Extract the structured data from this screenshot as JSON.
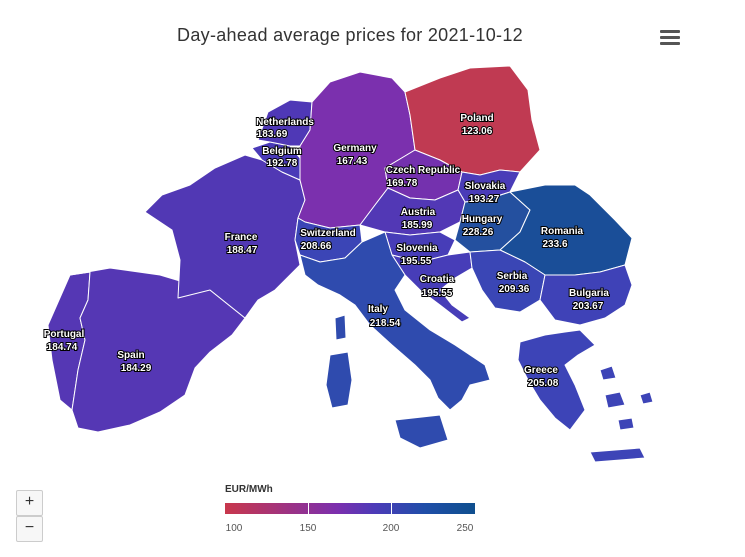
{
  "title": "Day-ahead average prices for 2021-10-12",
  "menu_icon": "hamburger-menu-icon",
  "zoom": {
    "in_label": "+",
    "out_label": "−"
  },
  "legend": {
    "title": "EUR/MWh",
    "ticks": [
      "100",
      "150",
      "200",
      "250"
    ],
    "colors": [
      "#c8374c",
      "#7b2fae",
      "#4c3bb8",
      "#1f4ea8",
      "#0f4f8e"
    ]
  },
  "countries": [
    {
      "key": "netherlands",
      "name": "Netherlands",
      "price": "183.69",
      "color": "#4f38b6"
    },
    {
      "key": "belgium",
      "name": "Belgium",
      "price": "192.78",
      "color": "#4a3bb8"
    },
    {
      "key": "germany",
      "name": "Germany",
      "price": "167.43",
      "color": "#7b30ae"
    },
    {
      "key": "poland",
      "name": "Poland",
      "price": "123.06",
      "color": "#c03a52"
    },
    {
      "key": "czech_republic",
      "name": "Czech Republic",
      "price": "169.78",
      "color": "#7431ae"
    },
    {
      "key": "slovakia",
      "name": "Slovakia",
      "price": "193.27",
      "color": "#4a3cb8"
    },
    {
      "key": "france",
      "name": "France",
      "price": "188.47",
      "color": "#5138b4"
    },
    {
      "key": "switzerland",
      "name": "Switzerland",
      "price": "208.66",
      "color": "#3b45b6"
    },
    {
      "key": "austria",
      "name": "Austria",
      "price": "185.99",
      "color": "#5238b5"
    },
    {
      "key": "hungary",
      "name": "Hungary",
      "price": "228.26",
      "color": "#24509f"
    },
    {
      "key": "romania",
      "name": "Romania",
      "price": "233.6",
      "color": "#1a4e98"
    },
    {
      "key": "slovenia",
      "name": "Slovenia",
      "price": "195.55",
      "color": "#473db8"
    },
    {
      "key": "croatia",
      "name": "Croatia",
      "price": "195.55",
      "color": "#473db8"
    },
    {
      "key": "serbia",
      "name": "Serbia",
      "price": "209.36",
      "color": "#3a46b5"
    },
    {
      "key": "bulgaria",
      "name": "Bulgaria",
      "price": "203.67",
      "color": "#3f42b7"
    },
    {
      "key": "portugal",
      "name": "Portugal",
      "price": "184.74",
      "color": "#5537b4"
    },
    {
      "key": "spain",
      "name": "Spain",
      "price": "184.29",
      "color": "#5537b4"
    },
    {
      "key": "italy",
      "name": "Italy",
      "price": "218.54",
      "color": "#2f4bae"
    },
    {
      "key": "greece",
      "name": "Greece",
      "price": "205.08",
      "color": "#3d44b7"
    }
  ]
}
